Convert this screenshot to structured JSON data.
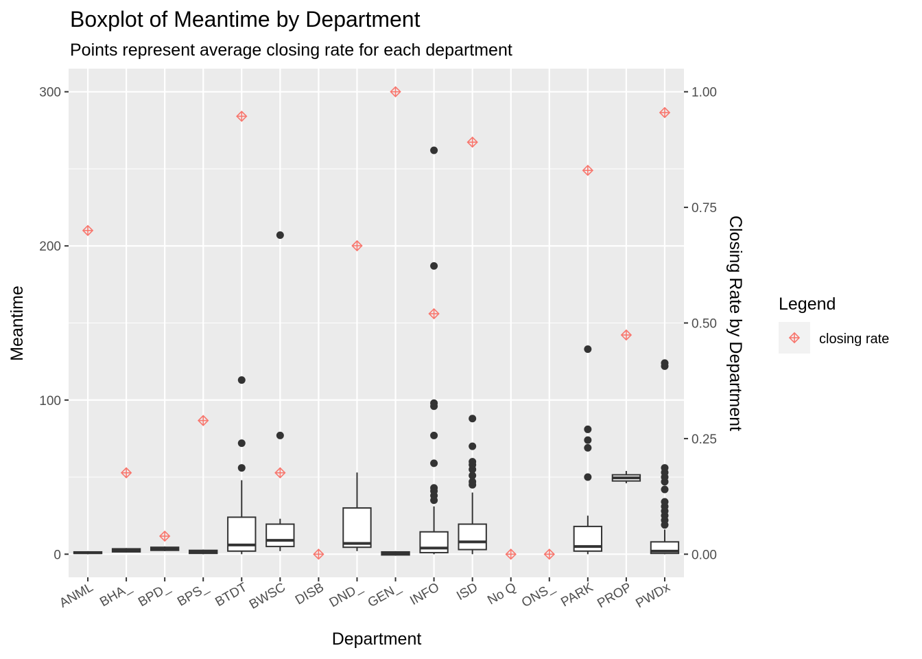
{
  "chart_data": {
    "type": "boxplot",
    "title": "Boxplot of Meantime by Department",
    "subtitle": "Points represent average closing rate for each department",
    "xlabel": "Department",
    "ylabel": "Meantime",
    "y2label": "Closing Rate by Department",
    "ylim": [
      -15,
      315
    ],
    "yticks": [
      0,
      100,
      200,
      300
    ],
    "y2ticks": [
      0,
      0.25,
      0.5,
      0.75,
      1.0
    ],
    "y2tick_labels": [
      "0.00",
      "0.25",
      "0.50",
      "0.75",
      "1.00"
    ],
    "y2_scale": 300,
    "categories": [
      "ANML",
      "BHA_",
      "BPD_",
      "BPS_",
      "BTDT",
      "BWSC",
      "DISB",
      "DND_",
      "GEN_",
      "INFO",
      "ISD",
      "No Q",
      "ONS_",
      "PARK",
      "PROP",
      "PWDx"
    ],
    "boxes": [
      {
        "q1": 0.5,
        "median": 1,
        "q3": 1.5,
        "lower": 0,
        "upper": 2,
        "outliers": []
      },
      {
        "q1": 1.5,
        "median": 2.5,
        "q3": 3.5,
        "lower": 1,
        "upper": 4,
        "outliers": []
      },
      {
        "q1": 2.5,
        "median": 3.5,
        "q3": 4.5,
        "lower": 2,
        "upper": 5,
        "outliers": []
      },
      {
        "q1": 0.5,
        "median": 1.5,
        "q3": 2.5,
        "lower": 0,
        "upper": 3,
        "outliers": []
      },
      {
        "q1": 2,
        "median": 6,
        "q3": 24,
        "lower": 0,
        "upper": 48,
        "outliers": [
          56,
          72,
          113
        ]
      },
      {
        "q1": 5,
        "median": 9,
        "q3": 19.5,
        "lower": 2,
        "upper": 23,
        "outliers": [
          77,
          207
        ]
      },
      null,
      {
        "q1": 4.5,
        "median": 7,
        "q3": 30,
        "lower": 2,
        "upper": 53,
        "outliers": []
      },
      {
        "q1": -0.5,
        "median": 0.5,
        "q3": 1.5,
        "lower": -1,
        "upper": 2,
        "outliers": []
      },
      {
        "q1": 1,
        "median": 4,
        "q3": 14.5,
        "lower": 0,
        "upper": 31,
        "outliers": [
          35,
          38,
          41,
          43,
          59,
          77,
          96,
          98,
          187,
          262
        ]
      },
      {
        "q1": 3,
        "median": 8,
        "q3": 19.5,
        "lower": 0,
        "upper": 40,
        "outliers": [
          45,
          47,
          51,
          55,
          58,
          60,
          70,
          88
        ]
      },
      null,
      null,
      {
        "q1": 2,
        "median": 5,
        "q3": 18,
        "lower": 0,
        "upper": 25,
        "outliers": [
          50,
          69,
          74,
          81,
          133
        ]
      },
      {
        "q1": 47.5,
        "median": 49.5,
        "q3": 51.5,
        "lower": 46,
        "upper": 54,
        "outliers": []
      },
      {
        "q1": 0.5,
        "median": 2,
        "q3": 8,
        "lower": 0,
        "upper": 16,
        "outliers": [
          19,
          22,
          25,
          28,
          31,
          34,
          42,
          47,
          50,
          53,
          56,
          122,
          124
        ]
      }
    ],
    "closing_rate": [
      0.7,
      0.176,
      0.039,
      0.289,
      0.947,
      0.176,
      0.0,
      0.667,
      1.0,
      0.52,
      0.891,
      0.0,
      0.0,
      0.83,
      0.474,
      0.955
    ],
    "legend": {
      "title": "Legend",
      "entries": [
        "closing rate"
      ],
      "position": "right"
    },
    "grid": true,
    "colors": {
      "panel": "#ebebeb",
      "grid": "#ffffff",
      "points": "#f8766d",
      "box": "#333333"
    }
  }
}
